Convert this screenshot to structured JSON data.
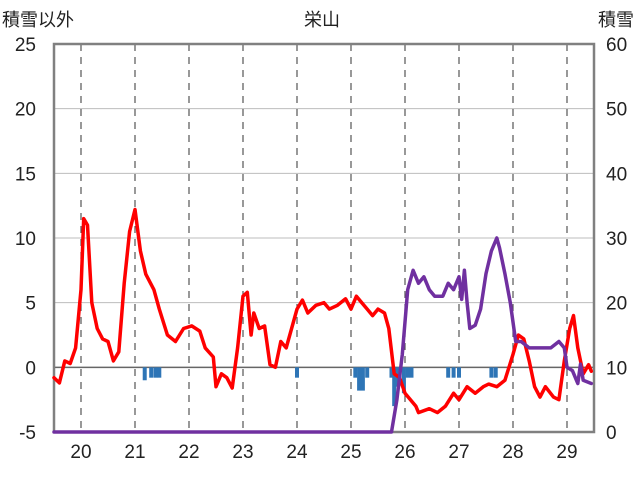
{
  "chart_data": {
    "type": "line",
    "title": "栄山",
    "ylabel_left": "積雪以外",
    "ylabel_right": "積雪",
    "x_tick_labels": [
      "20",
      "21",
      "22",
      "23",
      "24",
      "25",
      "26",
      "27",
      "28",
      "29"
    ],
    "xlim": [
      19.5,
      29.5
    ],
    "ylim_left": [
      -5,
      25
    ],
    "ylim_right": [
      0,
      60
    ],
    "yticks_left": [
      "-5",
      "0",
      "5",
      "10",
      "15",
      "20",
      "25"
    ],
    "yticks_right": [
      "0",
      "10",
      "20",
      "30",
      "40",
      "50",
      "60"
    ],
    "grid": "vertical dashed at each day",
    "series": [
      {
        "name": "",
        "kind": "line",
        "axis": "left",
        "color": "#ff0000",
        "points": [
          [
            19.5,
            -0.8
          ],
          [
            19.6,
            -1.2
          ],
          [
            19.7,
            0.5
          ],
          [
            19.8,
            0.3
          ],
          [
            19.9,
            1.5
          ],
          [
            20.0,
            6.0
          ],
          [
            20.05,
            11.5
          ],
          [
            20.12,
            11.0
          ],
          [
            20.2,
            5.0
          ],
          [
            20.3,
            3.0
          ],
          [
            20.4,
            2.2
          ],
          [
            20.5,
            2.0
          ],
          [
            20.6,
            0.5
          ],
          [
            20.7,
            1.2
          ],
          [
            20.8,
            6.5
          ],
          [
            20.9,
            10.5
          ],
          [
            21.0,
            12.2
          ],
          [
            21.1,
            9.0
          ],
          [
            21.2,
            7.2
          ],
          [
            21.35,
            6.0
          ],
          [
            21.45,
            4.5
          ],
          [
            21.6,
            2.5
          ],
          [
            21.75,
            2.0
          ],
          [
            21.9,
            3.0
          ],
          [
            22.05,
            3.2
          ],
          [
            22.2,
            2.8
          ],
          [
            22.3,
            1.5
          ],
          [
            22.45,
            0.8
          ],
          [
            22.5,
            -1.5
          ],
          [
            22.6,
            -0.5
          ],
          [
            22.7,
            -0.8
          ],
          [
            22.8,
            -1.6
          ],
          [
            22.9,
            1.5
          ],
          [
            23.0,
            5.5
          ],
          [
            23.08,
            5.8
          ],
          [
            23.15,
            2.5
          ],
          [
            23.2,
            4.2
          ],
          [
            23.3,
            3.0
          ],
          [
            23.4,
            3.2
          ],
          [
            23.5,
            0.2
          ],
          [
            23.6,
            0.0
          ],
          [
            23.7,
            2.0
          ],
          [
            23.8,
            1.5
          ],
          [
            23.9,
            3.0
          ],
          [
            24.0,
            4.5
          ],
          [
            24.1,
            5.2
          ],
          [
            24.2,
            4.2
          ],
          [
            24.35,
            4.8
          ],
          [
            24.5,
            5.0
          ],
          [
            24.6,
            4.5
          ],
          [
            24.75,
            4.8
          ],
          [
            24.9,
            5.3
          ],
          [
            25.0,
            4.5
          ],
          [
            25.1,
            5.5
          ],
          [
            25.2,
            5.0
          ],
          [
            25.3,
            4.5
          ],
          [
            25.4,
            4.0
          ],
          [
            25.5,
            4.5
          ],
          [
            25.62,
            4.2
          ],
          [
            25.7,
            3.0
          ],
          [
            25.8,
            -0.5
          ],
          [
            25.9,
            -0.8
          ],
          [
            26.0,
            -2.0
          ],
          [
            26.2,
            -3.0
          ],
          [
            26.25,
            -3.5
          ],
          [
            26.45,
            -3.2
          ],
          [
            26.6,
            -3.5
          ],
          [
            26.75,
            -3.0
          ],
          [
            26.9,
            -2.0
          ],
          [
            27.0,
            -2.5
          ],
          [
            27.15,
            -1.5
          ],
          [
            27.3,
            -2.0
          ],
          [
            27.45,
            -1.5
          ],
          [
            27.55,
            -1.3
          ],
          [
            27.7,
            -1.5
          ],
          [
            27.85,
            -1.0
          ],
          [
            28.0,
            1.0
          ],
          [
            28.1,
            2.5
          ],
          [
            28.2,
            2.2
          ],
          [
            28.3,
            0.5
          ],
          [
            28.4,
            -1.5
          ],
          [
            28.5,
            -2.3
          ],
          [
            28.6,
            -1.5
          ],
          [
            28.75,
            -2.3
          ],
          [
            28.85,
            -2.5
          ],
          [
            28.95,
            0.5
          ],
          [
            29.05,
            3.0
          ],
          [
            29.12,
            4.0
          ],
          [
            29.2,
            1.5
          ],
          [
            29.3,
            -0.5
          ],
          [
            29.4,
            0.2
          ],
          [
            29.45,
            -0.3
          ]
        ]
      },
      {
        "name": "",
        "kind": "line",
        "axis": "right",
        "color": "#7030a0",
        "points": [
          [
            19.5,
            0.0
          ],
          [
            25.75,
            0.0
          ],
          [
            25.85,
            5.0
          ],
          [
            25.95,
            12.0
          ],
          [
            26.05,
            22.0
          ],
          [
            26.15,
            25.0
          ],
          [
            26.25,
            23.0
          ],
          [
            26.35,
            24.0
          ],
          [
            26.45,
            22.0
          ],
          [
            26.55,
            21.0
          ],
          [
            26.7,
            21.0
          ],
          [
            26.8,
            23.0
          ],
          [
            26.9,
            22.0
          ],
          [
            27.0,
            24.0
          ],
          [
            27.05,
            20.5
          ],
          [
            27.1,
            25.0
          ],
          [
            27.15,
            20.0
          ],
          [
            27.2,
            16.0
          ],
          [
            27.3,
            16.5
          ],
          [
            27.4,
            19.0
          ],
          [
            27.5,
            24.5
          ],
          [
            27.6,
            28.0
          ],
          [
            27.7,
            30.0
          ],
          [
            27.75,
            28.5
          ],
          [
            27.85,
            24.5
          ],
          [
            27.95,
            20.0
          ],
          [
            28.05,
            14.0
          ],
          [
            28.15,
            14.0
          ],
          [
            28.3,
            13.0
          ],
          [
            28.5,
            13.0
          ],
          [
            28.7,
            13.0
          ],
          [
            28.85,
            14.0
          ],
          [
            28.95,
            13.0
          ],
          [
            29.0,
            10.0
          ],
          [
            29.1,
            9.5
          ],
          [
            29.2,
            7.5
          ],
          [
            29.25,
            10.5
          ],
          [
            29.3,
            8.0
          ],
          [
            29.45,
            7.5
          ]
        ]
      },
      {
        "name": "",
        "kind": "bar",
        "axis": "left",
        "color": "#2e75b6",
        "points": [
          [
            21.18,
            -1.0
          ],
          [
            21.3,
            -0.8
          ],
          [
            21.38,
            -0.8
          ],
          [
            21.45,
            -0.8
          ],
          [
            24.0,
            -0.8
          ],
          [
            25.08,
            -0.8
          ],
          [
            25.15,
            -1.8
          ],
          [
            25.22,
            -1.8
          ],
          [
            25.3,
            -0.8
          ],
          [
            25.75,
            -0.8
          ],
          [
            25.8,
            -3.0
          ],
          [
            25.85,
            -1.5
          ],
          [
            25.9,
            -0.8
          ],
          [
            25.98,
            -2.0
          ],
          [
            26.05,
            -0.8
          ],
          [
            26.12,
            -0.8
          ],
          [
            26.8,
            -0.8
          ],
          [
            26.9,
            -0.8
          ],
          [
            27.0,
            -0.8
          ],
          [
            27.6,
            -0.8
          ],
          [
            27.68,
            -0.8
          ]
        ]
      }
    ]
  }
}
